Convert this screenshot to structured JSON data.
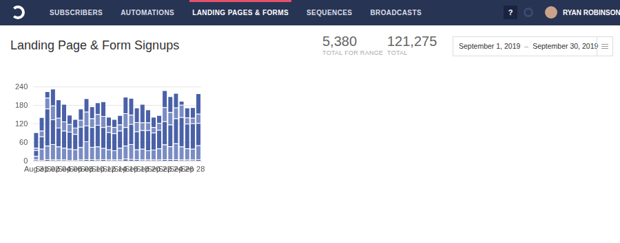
{
  "nav": {
    "items": [
      "SUBSCRIBERS",
      "AUTOMATIONS",
      "LANDING PAGES & FORMS",
      "SEQUENCES",
      "BROADCASTS"
    ],
    "active": "LANDING PAGES & FORMS",
    "help": "?",
    "user": "RYAN ROBINSON"
  },
  "header": {
    "title": "Landing Page & Form Signups",
    "stats": [
      {
        "value": "5,380",
        "label": "TOTAL FOR RANGE"
      },
      {
        "value": "121,275",
        "label": "TOTAL"
      }
    ],
    "date_range": {
      "start": "September 1, 2019",
      "separator": "–",
      "end": "September 30, 2019"
    }
  },
  "chart_data": {
    "type": "bar",
    "stacked": true,
    "grid": true,
    "categories": [
      "Aug 31",
      null,
      "Sep 02",
      null,
      "Sep 04",
      null,
      "Sep 06",
      null,
      "Sep 08",
      null,
      "Sep 10",
      null,
      "Sep 12",
      null,
      "Sep 14",
      null,
      "Sep 16",
      null,
      "Sep 18",
      null,
      "Sep 20",
      null,
      "Sep 22",
      null,
      "Sep 24",
      null,
      "Sep 26",
      null,
      "Sep 28",
      null
    ],
    "ylim": [
      0,
      240
    ],
    "yticks": [
      0,
      60,
      120,
      180,
      240
    ],
    "series": [
      {
        "color": "#4a61a8",
        "values": [
          5,
          4,
          6,
          5,
          5,
          5,
          4,
          4,
          5,
          6,
          6,
          5,
          6,
          5,
          5,
          5,
          8,
          7,
          6,
          5,
          5,
          5,
          5,
          6,
          6,
          6,
          5,
          5,
          5,
          6
        ]
      },
      {
        "color": "#7a8cc4",
        "values": [
          12,
          36,
          44,
          50,
          42,
          38,
          36,
          34,
          40,
          58,
          40,
          42,
          36,
          33,
          30,
          38,
          42,
          48,
          32,
          35,
          30,
          32,
          36,
          48,
          42,
          52,
          42,
          36,
          35,
          45
        ]
      },
      {
        "color": "#4a61a8",
        "values": [
          18,
          40,
          120,
          80,
          61,
          55,
          55,
          50,
          66,
          51,
          64,
          70,
          68,
          55,
          55,
          55,
          60,
          65,
          58,
          60,
          65,
          55,
          60,
          75,
          70,
          80,
          95,
          80,
          82,
          72
        ]
      },
      {
        "color": "#7a8cc4",
        "values": [
          8,
          18,
          35,
          45,
          32,
          30,
          25,
          20,
          22,
          45,
          28,
          35,
          36,
          20,
          20,
          20,
          45,
          30,
          30,
          25,
          25,
          18,
          22,
          45,
          40,
          35,
          40,
          20,
          18,
          30
        ]
      },
      {
        "color": "#4a61a8",
        "values": [
          50,
          44,
          21,
          54,
          59,
          57,
          30,
          28,
          37,
          43,
          39,
          38,
          47,
          30,
          26,
          31,
          53,
          54,
          47,
          60,
          42,
          33,
          26,
          55,
          52,
          47,
          13,
          32,
          34,
          66
        ]
      }
    ]
  }
}
